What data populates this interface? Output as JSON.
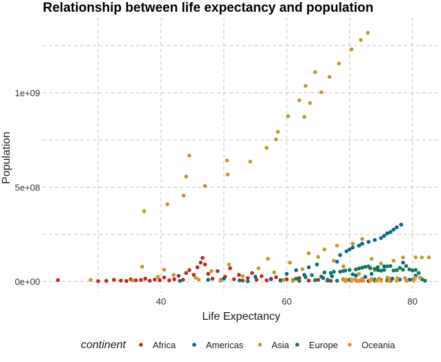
{
  "chart_data": {
    "type": "scatter",
    "title": "Relationship between life expectancy and population",
    "xlabel": "Life Expectancy",
    "ylabel": "Population",
    "xlim": [
      21.2,
      84.1
    ],
    "ylim": [
      -60000000,
      1400000000
    ],
    "x_ticks": [
      40,
      60,
      80
    ],
    "x_tick_labels": [
      "40",
      "60",
      "80"
    ],
    "y_ticks": [
      0,
      500000000,
      1000000000
    ],
    "y_tick_labels": [
      "0e+00",
      "5e+08",
      "1e+09"
    ],
    "grid": true,
    "legend_position": "bottom",
    "legend_title": "continent",
    "series": [
      {
        "name": "Africa",
        "color": "#C0281F",
        "points": [
          [
            23.6,
            7000000
          ],
          [
            30.0,
            1500000
          ],
          [
            31.3,
            3200000
          ],
          [
            32.5,
            9000000
          ],
          [
            33.6,
            4500000
          ],
          [
            34.5,
            2500000
          ],
          [
            35.2,
            11000000
          ],
          [
            36.0,
            6000000
          ],
          [
            36.8,
            8000000
          ],
          [
            37.5,
            15000000
          ],
          [
            38.2,
            4000000
          ],
          [
            39.0,
            10000000
          ],
          [
            39.8,
            7000000
          ],
          [
            40.5,
            21000000
          ],
          [
            41.3,
            5500000
          ],
          [
            42.1,
            12000000
          ],
          [
            42.8,
            30000000
          ],
          [
            43.5,
            9000000
          ],
          [
            44.0,
            45000000
          ],
          [
            44.5,
            60000000
          ],
          [
            45.2,
            35000000
          ],
          [
            45.8,
            75000000
          ],
          [
            46.3,
            100000000
          ],
          [
            46.6,
            125000000
          ],
          [
            47.0,
            90000000
          ],
          [
            47.5,
            40000000
          ],
          [
            48.2,
            15000000
          ],
          [
            49.0,
            55000000
          ],
          [
            49.5,
            8000000
          ],
          [
            50.2,
            25000000
          ],
          [
            51.0,
            70000000
          ],
          [
            51.6,
            12000000
          ],
          [
            52.4,
            35000000
          ],
          [
            53.0,
            5000000
          ],
          [
            53.8,
            18000000
          ],
          [
            54.5,
            45000000
          ],
          [
            55.2,
            9000000
          ],
          [
            56.0,
            28000000
          ],
          [
            56.8,
            6000000
          ],
          [
            57.5,
            14000000
          ],
          [
            58.3,
            22000000
          ],
          [
            59.0,
            4500000
          ],
          [
            60.0,
            12000000
          ],
          [
            61.0,
            7000000
          ],
          [
            62.0,
            18000000
          ],
          [
            63.5,
            5000000
          ],
          [
            65.0,
            9000000
          ],
          [
            67.0,
            3000000
          ],
          [
            69.0,
            11000000
          ],
          [
            71.0,
            6000000
          ],
          [
            73.0,
            2500000
          ],
          [
            75.0,
            8000000
          ],
          [
            76.5,
            4000000
          ]
        ]
      },
      {
        "name": "Americas",
        "color": "#05688C",
        "points": [
          [
            43.0,
            3000000
          ],
          [
            47.5,
            9000000
          ],
          [
            50.0,
            15000000
          ],
          [
            52.5,
            6000000
          ],
          [
            55.0,
            25000000
          ],
          [
            57.5,
            12000000
          ],
          [
            60.0,
            40000000
          ],
          [
            61.5,
            60000000
          ],
          [
            62.8,
            35000000
          ],
          [
            63.5,
            75000000
          ],
          [
            64.8,
            90000000
          ],
          [
            65.8,
            18000000
          ],
          [
            66.5,
            5000000
          ],
          [
            67.2,
            28000000
          ],
          [
            68.0,
            105000000
          ],
          [
            68.5,
            140000000
          ],
          [
            69.5,
            160000000
          ],
          [
            70.0,
            170000000
          ],
          [
            70.5,
            180000000
          ],
          [
            71.5,
            190000000
          ],
          [
            72.0,
            200000000
          ],
          [
            73.0,
            210000000
          ],
          [
            74.0,
            220000000
          ],
          [
            75.0,
            230000000
          ],
          [
            75.5,
            242000000
          ],
          [
            76.0,
            255000000
          ],
          [
            76.5,
            262000000
          ],
          [
            77.0,
            275000000
          ],
          [
            77.5,
            287000000
          ],
          [
            78.2,
            301000000
          ],
          [
            71.0,
            32000000
          ],
          [
            72.5,
            24000000
          ],
          [
            73.5,
            40000000
          ],
          [
            74.5,
            60000000
          ],
          [
            75.5,
            80000000
          ],
          [
            76.8,
            15000000
          ],
          [
            78.5,
            100000000
          ],
          [
            79.5,
            9000000
          ],
          [
            80.5,
            31000000
          ],
          [
            70.0,
            8000000
          ],
          [
            72.0,
            12000000
          ],
          [
            74.0,
            5000000
          ]
        ]
      },
      {
        "name": "Asia",
        "color": "#C39A28",
        "points": [
          [
            28.8,
            8500000
          ],
          [
            37.0,
            78000000
          ],
          [
            37.3,
            372000000
          ],
          [
            41.0,
            409000000
          ],
          [
            43.6,
            455000000
          ],
          [
            44.0,
            556000000
          ],
          [
            44.5,
            667000000
          ],
          [
            47.0,
            506000000
          ],
          [
            50.5,
            641000000
          ],
          [
            50.6,
            567000000
          ],
          [
            54.2,
            635000000
          ],
          [
            56.8,
            708000000
          ],
          [
            58.3,
            753000000
          ],
          [
            58.6,
            793000000
          ],
          [
            60.2,
            876000000
          ],
          [
            62.0,
            960000000
          ],
          [
            62.8,
            872000000
          ],
          [
            63.0,
            1037000000
          ],
          [
            63.7,
            946000000
          ],
          [
            64.5,
            1110000000
          ],
          [
            65.5,
            1003000000
          ],
          [
            66.8,
            1084000000
          ],
          [
            68.3,
            1155000000
          ],
          [
            70.3,
            1230000000
          ],
          [
            71.8,
            1280000000
          ],
          [
            72.9,
            1318000000
          ],
          [
            39.5,
            25000000
          ],
          [
            40.5,
            62000000
          ],
          [
            42.0,
            35000000
          ],
          [
            45.5,
            20000000
          ],
          [
            48.0,
            55000000
          ],
          [
            50.8,
            90000000
          ],
          [
            53.0,
            28000000
          ],
          [
            55.5,
            70000000
          ],
          [
            57.0,
            120000000
          ],
          [
            58.0,
            48000000
          ],
          [
            60.5,
            100000000
          ],
          [
            62.5,
            65000000
          ],
          [
            63.5,
            150000000
          ],
          [
            65.0,
            130000000
          ],
          [
            66.0,
            170000000
          ],
          [
            67.5,
            110000000
          ],
          [
            68.0,
            190000000
          ],
          [
            69.0,
            80000000
          ],
          [
            70.5,
            200000000
          ],
          [
            71.5,
            40000000
          ],
          [
            72.0,
            225000000
          ],
          [
            73.5,
            120000000
          ],
          [
            74.0,
            60000000
          ],
          [
            75.0,
            95000000
          ],
          [
            77.0,
            110000000
          ],
          [
            78.5,
            127000000
          ],
          [
            80.5,
            128000000
          ],
          [
            81.5,
            127000000
          ],
          [
            82.6,
            127500000
          ],
          [
            35.5,
            5000000
          ],
          [
            46.0,
            10000000
          ],
          [
            49.5,
            4000000
          ],
          [
            59.5,
            8000000
          ],
          [
            61.0,
            3000000
          ],
          [
            76.0,
            20000000
          ],
          [
            79.0,
            6000000
          ]
        ]
      },
      {
        "name": "Europe",
        "color": "#0C7C5A",
        "points": [
          [
            53.8,
            1300000
          ],
          [
            59.0,
            8000000
          ],
          [
            61.5,
            15000000
          ],
          [
            63.0,
            22000000
          ],
          [
            64.0,
            33000000
          ],
          [
            65.5,
            26000000
          ],
          [
            66.0,
            48000000
          ],
          [
            67.0,
            45000000
          ],
          [
            67.5,
            51000000
          ],
          [
            68.5,
            52000000
          ],
          [
            69.0,
            56000000
          ],
          [
            69.3,
            58000000
          ],
          [
            70.0,
            61000000
          ],
          [
            70.5,
            38000000
          ],
          [
            71.0,
            64000000
          ],
          [
            71.5,
            69000000
          ],
          [
            72.0,
            73000000
          ],
          [
            72.5,
            78000000
          ],
          [
            73.0,
            80000000
          ],
          [
            73.3,
            70000000
          ],
          [
            74.0,
            67000000
          ],
          [
            74.5,
            76000000
          ],
          [
            75.0,
            57000000
          ],
          [
            75.5,
            61000000
          ],
          [
            76.0,
            80000000
          ],
          [
            76.5,
            82000000
          ],
          [
            77.0,
            58000000
          ],
          [
            77.5,
            60000000
          ],
          [
            78.0,
            72000000
          ],
          [
            78.5,
            62000000
          ],
          [
            79.0,
            82000000
          ],
          [
            79.5,
            64000000
          ],
          [
            80.0,
            58000000
          ],
          [
            80.5,
            61000000
          ],
          [
            81.0,
            45000000
          ],
          [
            81.5,
            12000000
          ],
          [
            82.0,
            4000000
          ],
          [
            66.5,
            9000000
          ],
          [
            68.0,
            4000000
          ],
          [
            70.0,
            10000000
          ],
          [
            72.0,
            5000000
          ],
          [
            74.0,
            10000000
          ],
          [
            76.0,
            5000000
          ],
          [
            78.0,
            10000000
          ],
          [
            80.0,
            9000000
          ],
          [
            64.5,
            7000000
          ],
          [
            62.0,
            3000000
          ]
        ]
      },
      {
        "name": "Oceania",
        "color": "#E39225",
        "points": [
          [
            69.1,
            8700000
          ],
          [
            69.4,
            10000000
          ],
          [
            70.3,
            11000000
          ],
          [
            70.9,
            12000000
          ],
          [
            71.9,
            13000000
          ],
          [
            73.5,
            14000000
          ],
          [
            74.7,
            15000000
          ],
          [
            76.3,
            16500000
          ],
          [
            77.6,
            17500000
          ],
          [
            78.8,
            18600000
          ],
          [
            80.4,
            19500000
          ],
          [
            81.2,
            20400000
          ],
          [
            69.4,
            1990000
          ],
          [
            70.3,
            2300000
          ],
          [
            71.2,
            2600000
          ],
          [
            71.5,
            2900000
          ],
          [
            72.2,
            3100000
          ],
          [
            73.3,
            3300000
          ],
          [
            74.3,
            3400000
          ],
          [
            75.0,
            3500000
          ],
          [
            76.3,
            3600000
          ],
          [
            77.5,
            3800000
          ],
          [
            79.1,
            3900000
          ],
          [
            80.2,
            4100000
          ]
        ]
      }
    ]
  }
}
